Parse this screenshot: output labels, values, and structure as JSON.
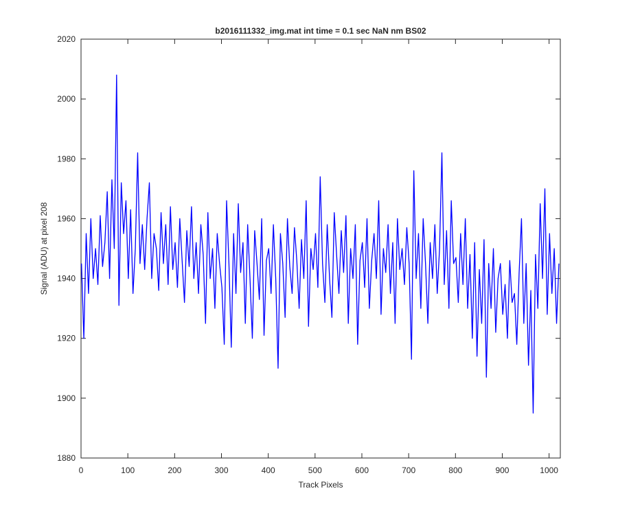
{
  "chart_data": {
    "type": "line",
    "title": "b2016111332_img.mat int time = 0.1 sec  NaN nm BS02",
    "x_label": "Track Pixels",
    "y_label": "Signal (ADU) at pixel 208",
    "xlim": [
      0,
      1024
    ],
    "ylim": [
      1880,
      2020
    ],
    "xticks": [
      0,
      100,
      200,
      300,
      400,
      500,
      600,
      700,
      800,
      900,
      1000
    ],
    "yticks": [
      1880,
      1900,
      1920,
      1940,
      1960,
      1980,
      2000,
      2020
    ],
    "grid": false,
    "x": [
      1,
      6,
      11,
      16,
      21,
      26,
      31,
      36,
      41,
      46,
      51,
      56,
      61,
      66,
      71,
      76,
      81,
      86,
      91,
      96,
      101,
      106,
      111,
      116,
      121,
      126,
      131,
      136,
      141,
      146,
      151,
      156,
      161,
      166,
      171,
      176,
      181,
      186,
      191,
      196,
      201,
      206,
      211,
      216,
      221,
      226,
      231,
      236,
      241,
      246,
      251,
      256,
      261,
      266,
      271,
      276,
      281,
      286,
      291,
      296,
      301,
      306,
      311,
      316,
      321,
      326,
      331,
      336,
      341,
      346,
      351,
      356,
      361,
      366,
      371,
      376,
      381,
      386,
      391,
      396,
      401,
      406,
      411,
      416,
      421,
      426,
      431,
      436,
      441,
      446,
      451,
      456,
      461,
      466,
      471,
      476,
      481,
      486,
      491,
      496,
      501,
      506,
      511,
      516,
      521,
      526,
      531,
      536,
      541,
      546,
      551,
      556,
      561,
      566,
      571,
      576,
      581,
      586,
      591,
      596,
      601,
      606,
      611,
      616,
      621,
      626,
      631,
      636,
      641,
      646,
      651,
      656,
      661,
      666,
      671,
      676,
      681,
      686,
      691,
      696,
      701,
      706,
      711,
      716,
      721,
      726,
      731,
      736,
      741,
      746,
      751,
      756,
      761,
      766,
      771,
      776,
      781,
      786,
      791,
      796,
      801,
      806,
      811,
      816,
      821,
      826,
      831,
      836,
      841,
      846,
      851,
      856,
      861,
      866,
      871,
      876,
      881,
      886,
      891,
      896,
      901,
      906,
      911,
      916,
      921,
      926,
      931,
      936,
      941,
      946,
      951,
      956,
      961,
      966,
      971,
      976,
      981,
      986,
      991,
      996,
      1001,
      1006,
      1011,
      1016,
      1021
    ],
    "series": [
      {
        "color": "#0000ff",
        "values": [
          1945,
          1920,
          1955,
          1935,
          1960,
          1940,
          1950,
          1938,
          1961,
          1944,
          1952,
          1969,
          1940,
          1973,
          1950,
          2008,
          1931,
          1972,
          1955,
          1966,
          1940,
          1963,
          1935,
          1950,
          1982,
          1945,
          1958,
          1943,
          1960,
          1972,
          1940,
          1955,
          1950,
          1936,
          1962,
          1945,
          1958,
          1938,
          1964,
          1943,
          1952,
          1937,
          1960,
          1946,
          1932,
          1956,
          1944,
          1964,
          1940,
          1952,
          1935,
          1958,
          1948,
          1925,
          1962,
          1940,
          1950,
          1930,
          1955,
          1945,
          1937,
          1918,
          1966,
          1945,
          1917,
          1955,
          1935,
          1965,
          1942,
          1952,
          1925,
          1958,
          1940,
          1920,
          1956,
          1945,
          1933,
          1960,
          1921,
          1946,
          1950,
          1935,
          1958,
          1940,
          1910,
          1955,
          1945,
          1927,
          1960,
          1944,
          1935,
          1957,
          1946,
          1930,
          1953,
          1940,
          1966,
          1924,
          1950,
          1943,
          1955,
          1937,
          1974,
          1945,
          1932,
          1958,
          1940,
          1927,
          1962,
          1948,
          1935,
          1956,
          1942,
          1961,
          1925,
          1950,
          1940,
          1958,
          1918,
          1946,
          1952,
          1937,
          1960,
          1930,
          1946,
          1955,
          1940,
          1966,
          1928,
          1950,
          1942,
          1958,
          1935,
          1952,
          1925,
          1960,
          1943,
          1950,
          1938,
          1957,
          1945,
          1913,
          1976,
          1940,
          1955,
          1930,
          1960,
          1945,
          1925,
          1952,
          1940,
          1958,
          1935,
          1950,
          1982,
          1938,
          1956,
          1930,
          1966,
          1945,
          1947,
          1932,
          1955,
          1938,
          1960,
          1930,
          1948,
          1920,
          1952,
          1914,
          1943,
          1925,
          1953,
          1907,
          1945,
          1930,
          1950,
          1922,
          1940,
          1945,
          1928,
          1938,
          1920,
          1946,
          1932,
          1935,
          1918,
          1942,
          1960,
          1925,
          1945,
          1911,
          1936,
          1895,
          1948,
          1930,
          1965,
          1940,
          1970,
          1928,
          1955,
          1935,
          1950,
          1925,
          1945
        ]
      }
    ]
  }
}
